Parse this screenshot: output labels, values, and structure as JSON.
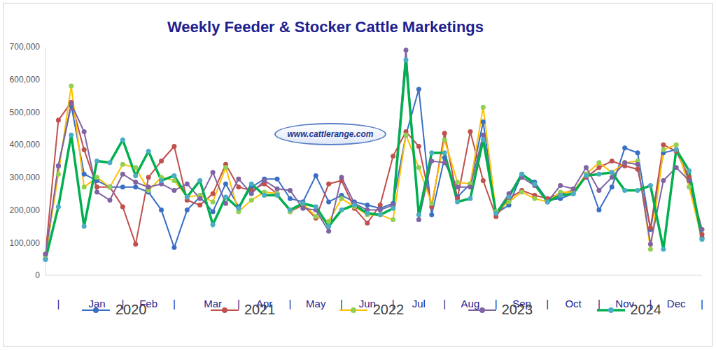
{
  "chart_data": {
    "type": "line",
    "title": "Weekly Feeder & Stocker Cattle Marketings",
    "annotation": "www.cattlerange.com",
    "categories": [
      null,
      "|",
      null,
      null,
      "Jan",
      null,
      "|",
      null,
      "Feb",
      null,
      "|",
      null,
      null,
      "Mar",
      null,
      "|",
      null,
      "Apr",
      null,
      "|",
      null,
      "May",
      null,
      "|",
      null,
      "Jun",
      null,
      "|",
      null,
      "Jul",
      null,
      "|",
      null,
      "Aug",
      null,
      "|",
      null,
      "Sep",
      null,
      "|",
      null,
      "Oct",
      null,
      "|",
      null,
      "Nov",
      null,
      "|",
      null,
      "Dec",
      null,
      "|"
    ],
    "series": [
      {
        "name": "2020",
        "color": "#3a6fc4",
        "values": [
          50000,
          335000,
          520000,
          310000,
          290000,
          270000,
          270000,
          270000,
          255000,
          200000,
          85000,
          200000,
          240000,
          195000,
          280000,
          210000,
          270000,
          295000,
          295000,
          235000,
          225000,
          305000,
          225000,
          245000,
          225000,
          215000,
          205000,
          220000,
          430000,
          570000,
          185000,
          360000,
          240000,
          280000,
          470000,
          190000,
          215000,
          310000,
          285000,
          230000,
          235000,
          250000,
          310000,
          200000,
          270000,
          390000,
          375000,
          140000,
          375000,
          385000,
          290000,
          115000
        ]
      },
      {
        "name": "2021",
        "color": "#c0504d",
        "values": [
          65000,
          475000,
          530000,
          385000,
          270000,
          270000,
          210000,
          95000,
          300000,
          350000,
          395000,
          230000,
          215000,
          250000,
          340000,
          270000,
          260000,
          280000,
          250000,
          195000,
          215000,
          175000,
          280000,
          290000,
          205000,
          160000,
          215000,
          365000,
          440000,
          395000,
          210000,
          435000,
          235000,
          440000,
          290000,
          180000,
          235000,
          260000,
          245000,
          235000,
          250000,
          260000,
          300000,
          330000,
          350000,
          335000,
          325000,
          145000,
          400000,
          380000,
          300000,
          125000
        ]
      },
      {
        "name": "2022",
        "color": "#ffc000",
        "values": [
          60000,
          310000,
          580000,
          270000,
          300000,
          270000,
          340000,
          330000,
          260000,
          300000,
          290000,
          240000,
          245000,
          225000,
          330000,
          195000,
          230000,
          255000,
          250000,
          195000,
          220000,
          180000,
          165000,
          235000,
          210000,
          185000,
          185000,
          170000,
          430000,
          330000,
          220000,
          415000,
          285000,
          280000,
          515000,
          195000,
          225000,
          255000,
          235000,
          225000,
          255000,
          255000,
          310000,
          345000,
          315000,
          345000,
          350000,
          80000,
          385000,
          400000,
          270000,
          110000
        ]
      },
      {
        "name": "2023",
        "color": "#8064a2",
        "values": [
          65000,
          335000,
          525000,
          440000,
          255000,
          230000,
          310000,
          285000,
          270000,
          280000,
          260000,
          280000,
          235000,
          315000,
          220000,
          295000,
          250000,
          290000,
          265000,
          260000,
          205000,
          200000,
          135000,
          300000,
          220000,
          200000,
          200000,
          215000,
          690000,
          170000,
          350000,
          345000,
          270000,
          270000,
          430000,
          190000,
          250000,
          300000,
          275000,
          225000,
          275000,
          265000,
          330000,
          260000,
          300000,
          345000,
          340000,
          95000,
          290000,
          330000,
          290000,
          140000
        ]
      },
      {
        "name": "2024",
        "color": "#00b050",
        "values": [
          48000,
          210000,
          430000,
          150000,
          350000,
          345000,
          415000,
          305000,
          380000,
          290000,
          305000,
          240000,
          290000,
          155000,
          240000,
          205000,
          280000,
          245000,
          245000,
          200000,
          220000,
          210000,
          150000,
          200000,
          215000,
          190000,
          185000,
          205000,
          660000,
          185000,
          375000,
          375000,
          225000,
          235000,
          415000,
          190000,
          240000,
          310000,
          280000,
          225000,
          245000,
          250000,
          305000,
          310000,
          315000,
          260000,
          260000,
          275000,
          80000,
          385000,
          320000,
          110000
        ]
      }
    ],
    "ylim": [
      0,
      700000
    ],
    "yticks": [
      0,
      {
        "value": 100000,
        "label": "100,000"
      },
      {
        "value": 200000,
        "label": "200,000"
      },
      {
        "value": 300000,
        "label": "300,000"
      },
      {
        "value": 400000,
        "label": "400,000"
      },
      {
        "value": 500000,
        "label": "500,000"
      },
      {
        "value": 600000,
        "label": "600,000"
      },
      {
        "value": 700000,
        "label": "700,000"
      }
    ],
    "grid": false,
    "legend": "bottom",
    "marker": "circle"
  }
}
